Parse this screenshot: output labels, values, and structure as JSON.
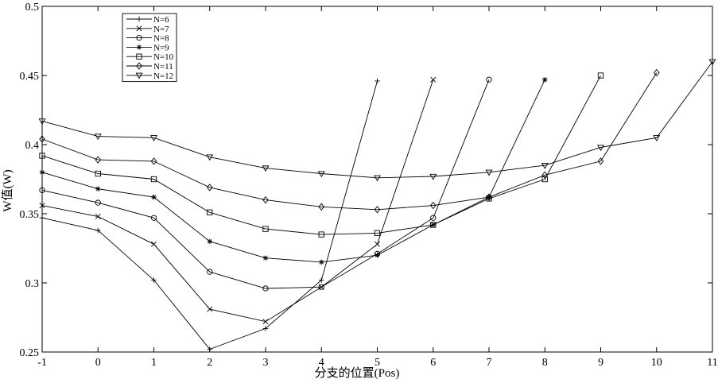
{
  "chart_data": {
    "type": "line",
    "title": "",
    "xlabel": "分支的位置(Pos)",
    "ylabel": "W值(W)",
    "xlim": [
      -1,
      11
    ],
    "ylim": [
      0.25,
      0.5
    ],
    "x_ticks": [
      -1,
      0,
      1,
      2,
      3,
      4,
      5,
      6,
      7,
      8,
      9,
      10,
      11
    ],
    "x_tick_labels": [
      "-1",
      "0",
      "1",
      "2",
      "3",
      "4",
      "5",
      "6",
      "7",
      "8",
      "9",
      "10",
      "11"
    ],
    "y_ticks": [
      0.25,
      0.3,
      0.35,
      0.4,
      0.45,
      0.5
    ],
    "y_tick_labels": [
      "0.25",
      "0.3",
      "0.35",
      "0.4",
      "0.45",
      "0.5"
    ],
    "grid": false,
    "legend_position": "top-left",
    "color": "#000000",
    "series": [
      {
        "name": "N=6",
        "marker": "plus",
        "x": [
          -1,
          0,
          1,
          2,
          3,
          4,
          5
        ],
        "y": [
          0.347,
          0.338,
          0.302,
          0.252,
          0.267,
          0.302,
          0.446
        ]
      },
      {
        "name": "N=7",
        "marker": "x",
        "x": [
          -1,
          0,
          1,
          2,
          3,
          4,
          5,
          6
        ],
        "y": [
          0.356,
          0.348,
          0.328,
          0.281,
          0.272,
          0.297,
          0.328,
          0.447
        ]
      },
      {
        "name": "N=8",
        "marker": "circle",
        "x": [
          -1,
          0,
          1,
          2,
          3,
          4,
          5,
          6,
          7
        ],
        "y": [
          0.367,
          0.358,
          0.347,
          0.308,
          0.296,
          0.297,
          0.321,
          0.347,
          0.447
        ]
      },
      {
        "name": "N=9",
        "marker": "star",
        "x": [
          -1,
          0,
          1,
          2,
          3,
          4,
          5,
          6,
          7,
          8
        ],
        "y": [
          0.38,
          0.368,
          0.362,
          0.33,
          0.318,
          0.315,
          0.32,
          0.342,
          0.362,
          0.447
        ]
      },
      {
        "name": "N=10",
        "marker": "square",
        "x": [
          -1,
          0,
          1,
          2,
          3,
          4,
          5,
          6,
          7,
          8,
          9
        ],
        "y": [
          0.392,
          0.379,
          0.375,
          0.351,
          0.339,
          0.335,
          0.336,
          0.342,
          0.361,
          0.375,
          0.45
        ]
      },
      {
        "name": "N=11",
        "marker": "diamond",
        "x": [
          -1,
          0,
          1,
          2,
          3,
          4,
          5,
          6,
          7,
          8,
          9,
          10
        ],
        "y": [
          0.404,
          0.389,
          0.388,
          0.369,
          0.36,
          0.355,
          0.353,
          0.356,
          0.362,
          0.378,
          0.388,
          0.452
        ]
      },
      {
        "name": "N=12",
        "marker": "triangle-down",
        "x": [
          -1,
          0,
          1,
          2,
          3,
          4,
          5,
          6,
          7,
          8,
          9,
          10,
          11
        ],
        "y": [
          0.417,
          0.406,
          0.405,
          0.391,
          0.383,
          0.379,
          0.376,
          0.377,
          0.38,
          0.385,
          0.398,
          0.405,
          0.46
        ]
      }
    ]
  }
}
